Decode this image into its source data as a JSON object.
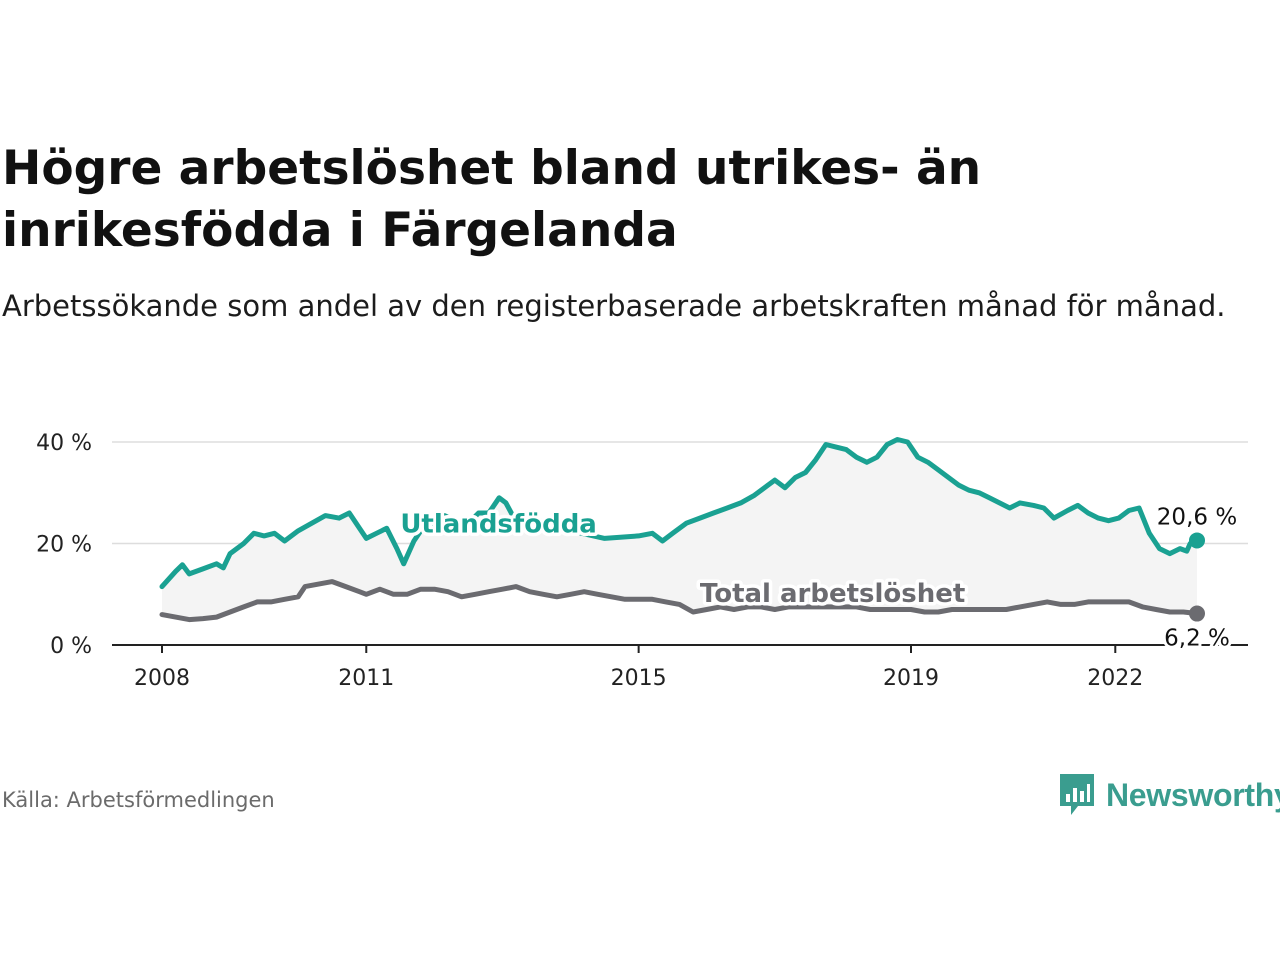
{
  "header": {
    "title": "Högre arbetslöshet bland utrikes- än inrikesfödda i Färgelanda",
    "subtitle": "Arbetssökande som andel av den registerbaserade arbetskraften månad för månad."
  },
  "footer": {
    "source": "Källa: Arbetsförmedlingen",
    "brand": "Newsworthy"
  },
  "colors": {
    "foreign": "#1aa192",
    "total": "#6b6b70",
    "band": "#f4f4f4",
    "grid": "#dddddd"
  },
  "chart_data": {
    "type": "line",
    "title": "Högre arbetslöshet bland utrikes- än inrikesfödda i Färgelanda",
    "xlabel": "",
    "ylabel": "",
    "xlim": [
      2008.0,
      2023.2
    ],
    "ylim": [
      0,
      40
    ],
    "x_ticks": [
      {
        "value": 2008,
        "label": "2008"
      },
      {
        "value": 2011,
        "label": "2011"
      },
      {
        "value": 2015,
        "label": "2015"
      },
      {
        "value": 2019,
        "label": "2019"
      },
      {
        "value": 2022,
        "label": "2022"
      }
    ],
    "y_ticks": [
      {
        "value": 0,
        "label": "0 %"
      },
      {
        "value": 20,
        "label": "20 %"
      },
      {
        "value": 40,
        "label": "40 %"
      }
    ],
    "grid": true,
    "shaded_between_series": true,
    "series": [
      {
        "name": "Utlandsfödda",
        "label": "Utlandsfödda",
        "end_label": "20,6 %",
        "color": "#1aa192",
        "label_at": [
          2011.5,
          22.2
        ],
        "points": [
          [
            2008.0,
            11.5
          ],
          [
            2008.2,
            14.5
          ],
          [
            2008.3,
            15.8
          ],
          [
            2008.4,
            14.0
          ],
          [
            2008.6,
            15.0
          ],
          [
            2008.8,
            16.0
          ],
          [
            2008.9,
            15.2
          ],
          [
            2009.0,
            18.0
          ],
          [
            2009.2,
            20.0
          ],
          [
            2009.35,
            22.0
          ],
          [
            2009.5,
            21.5
          ],
          [
            2009.65,
            22.0
          ],
          [
            2009.8,
            20.5
          ],
          [
            2010.0,
            22.5
          ],
          [
            2010.2,
            24.0
          ],
          [
            2010.4,
            25.5
          ],
          [
            2010.6,
            25.0
          ],
          [
            2010.75,
            26.0
          ],
          [
            2010.9,
            23.0
          ],
          [
            2011.0,
            21.0
          ],
          [
            2011.15,
            22.0
          ],
          [
            2011.3,
            23.0
          ],
          [
            2011.45,
            19.0
          ],
          [
            2011.55,
            16.0
          ],
          [
            2011.7,
            20.5
          ],
          [
            2011.85,
            23.5
          ],
          [
            2012.0,
            24.0
          ],
          [
            2012.15,
            25.5
          ],
          [
            2012.3,
            24.5
          ],
          [
            2012.5,
            24.0
          ],
          [
            2012.65,
            26.0
          ],
          [
            2012.8,
            26.0
          ],
          [
            2012.95,
            29.0
          ],
          [
            2013.05,
            28.0
          ],
          [
            2013.15,
            25.5
          ],
          [
            2013.3,
            26.0
          ],
          [
            2013.45,
            25.0
          ],
          [
            2014.0,
            22.5
          ],
          [
            2014.5,
            21.0
          ],
          [
            2015.0,
            21.5
          ],
          [
            2015.2,
            22.0
          ],
          [
            2015.35,
            20.5
          ],
          [
            2015.5,
            22.0
          ],
          [
            2015.7,
            24.0
          ],
          [
            2015.9,
            25.0
          ],
          [
            2016.1,
            26.0
          ],
          [
            2016.3,
            27.0
          ],
          [
            2016.5,
            28.0
          ],
          [
            2016.7,
            29.5
          ],
          [
            2016.9,
            31.5
          ],
          [
            2017.0,
            32.5
          ],
          [
            2017.15,
            31.0
          ],
          [
            2017.3,
            33.0
          ],
          [
            2017.45,
            34.0
          ],
          [
            2017.6,
            36.5
          ],
          [
            2017.75,
            39.5
          ],
          [
            2017.9,
            39.0
          ],
          [
            2018.05,
            38.5
          ],
          [
            2018.2,
            37.0
          ],
          [
            2018.35,
            36.0
          ],
          [
            2018.5,
            37.0
          ],
          [
            2018.65,
            39.5
          ],
          [
            2018.8,
            40.5
          ],
          [
            2018.95,
            40.0
          ],
          [
            2019.1,
            37.0
          ],
          [
            2019.25,
            36.0
          ],
          [
            2019.4,
            34.5
          ],
          [
            2019.55,
            33.0
          ],
          [
            2019.7,
            31.5
          ],
          [
            2019.85,
            30.5
          ],
          [
            2020.0,
            30.0
          ],
          [
            2020.15,
            29.0
          ],
          [
            2020.3,
            28.0
          ],
          [
            2020.45,
            27.0
          ],
          [
            2020.6,
            28.0
          ],
          [
            2020.8,
            27.5
          ],
          [
            2020.95,
            27.0
          ],
          [
            2021.1,
            25.0
          ],
          [
            2021.3,
            26.5
          ],
          [
            2021.45,
            27.5
          ],
          [
            2021.6,
            26.0
          ],
          [
            2021.75,
            25.0
          ],
          [
            2021.9,
            24.5
          ],
          [
            2022.05,
            25.0
          ],
          [
            2022.2,
            26.5
          ],
          [
            2022.35,
            27.0
          ],
          [
            2022.5,
            22.0
          ],
          [
            2022.65,
            19.0
          ],
          [
            2022.8,
            18.0
          ],
          [
            2022.95,
            19.0
          ],
          [
            2023.05,
            18.5
          ],
          [
            2023.1,
            20.0
          ],
          [
            2023.2,
            20.6
          ]
        ]
      },
      {
        "name": "Total arbetslöshet",
        "label": "Total arbetslöshet",
        "end_label": "6,2 %",
        "color": "#6b6b70",
        "label_at": [
          2015.9,
          8.5
        ],
        "points": [
          [
            2008.0,
            6.0
          ],
          [
            2008.2,
            5.5
          ],
          [
            2008.4,
            5.0
          ],
          [
            2008.6,
            5.2
          ],
          [
            2008.8,
            5.5
          ],
          [
            2009.0,
            6.5
          ],
          [
            2009.2,
            7.5
          ],
          [
            2009.4,
            8.5
          ],
          [
            2009.6,
            8.5
          ],
          [
            2009.8,
            9.0
          ],
          [
            2010.0,
            9.5
          ],
          [
            2010.1,
            11.5
          ],
          [
            2010.3,
            12.0
          ],
          [
            2010.5,
            12.5
          ],
          [
            2010.7,
            11.5
          ],
          [
            2010.9,
            10.5
          ],
          [
            2011.0,
            10.0
          ],
          [
            2011.2,
            11.0
          ],
          [
            2011.4,
            10.0
          ],
          [
            2011.6,
            10.0
          ],
          [
            2011.8,
            11.0
          ],
          [
            2012.0,
            11.0
          ],
          [
            2012.2,
            10.5
          ],
          [
            2012.4,
            9.5
          ],
          [
            2012.6,
            10.0
          ],
          [
            2012.8,
            10.5
          ],
          [
            2013.0,
            11.0
          ],
          [
            2013.2,
            11.5
          ],
          [
            2013.4,
            10.5
          ],
          [
            2013.6,
            10.0
          ],
          [
            2013.8,
            9.5
          ],
          [
            2014.0,
            10.0
          ],
          [
            2014.2,
            10.5
          ],
          [
            2014.4,
            10.0
          ],
          [
            2014.6,
            9.5
          ],
          [
            2014.8,
            9.0
          ],
          [
            2015.0,
            9.0
          ],
          [
            2015.2,
            9.0
          ],
          [
            2015.4,
            8.5
          ],
          [
            2015.6,
            8.0
          ],
          [
            2015.8,
            6.5
          ],
          [
            2016.0,
            7.0
          ],
          [
            2016.2,
            7.5
          ],
          [
            2016.4,
            7.0
          ],
          [
            2016.6,
            7.5
          ],
          [
            2016.8,
            7.5
          ],
          [
            2017.0,
            7.0
          ],
          [
            2017.2,
            7.5
          ],
          [
            2017.4,
            7.5
          ],
          [
            2017.6,
            7.5
          ],
          [
            2017.8,
            7.5
          ],
          [
            2018.0,
            7.5
          ],
          [
            2018.2,
            7.5
          ],
          [
            2018.4,
            7.0
          ],
          [
            2018.6,
            7.0
          ],
          [
            2018.8,
            7.0
          ],
          [
            2019.0,
            7.0
          ],
          [
            2019.2,
            6.5
          ],
          [
            2019.4,
            6.5
          ],
          [
            2019.6,
            7.0
          ],
          [
            2019.8,
            7.0
          ],
          [
            2020.0,
            7.0
          ],
          [
            2020.2,
            7.0
          ],
          [
            2020.4,
            7.0
          ],
          [
            2020.6,
            7.5
          ],
          [
            2020.8,
            8.0
          ],
          [
            2021.0,
            8.5
          ],
          [
            2021.2,
            8.0
          ],
          [
            2021.4,
            8.0
          ],
          [
            2021.6,
            8.5
          ],
          [
            2021.8,
            8.5
          ],
          [
            2022.0,
            8.5
          ],
          [
            2022.2,
            8.5
          ],
          [
            2022.4,
            7.5
          ],
          [
            2022.6,
            7.0
          ],
          [
            2022.8,
            6.5
          ],
          [
            2023.0,
            6.5
          ],
          [
            2023.2,
            6.2
          ]
        ]
      }
    ]
  }
}
